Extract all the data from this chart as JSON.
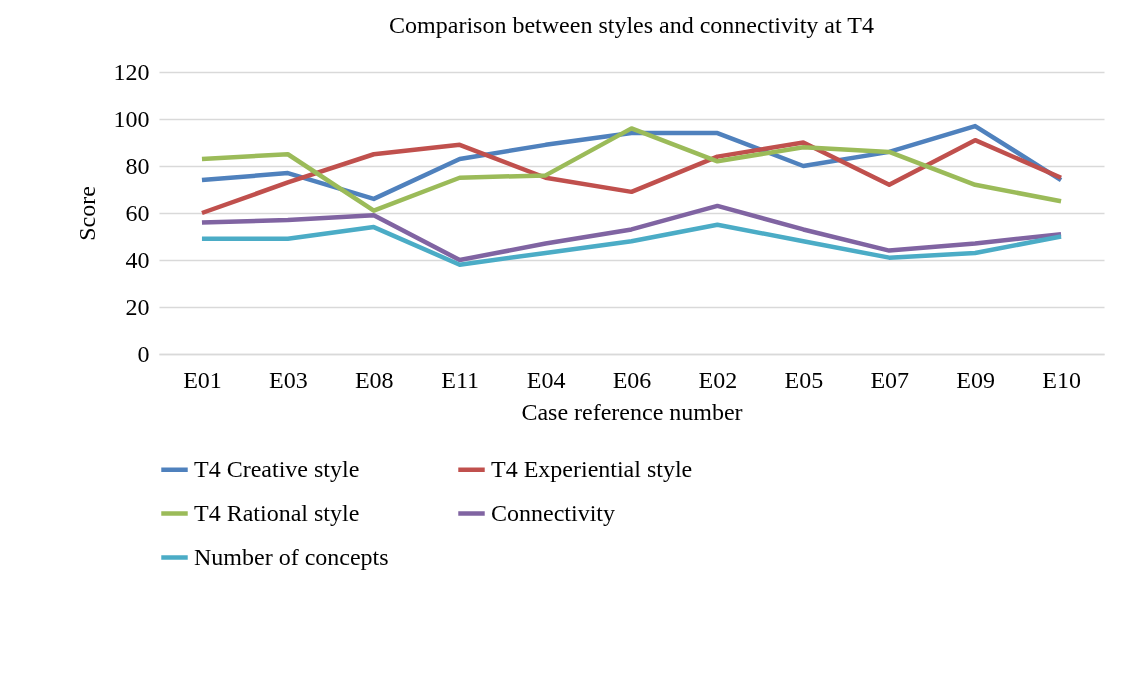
{
  "chart_data": {
    "type": "line",
    "title": "Comparison between styles and connectivity at T4",
    "xlabel": "Case reference number",
    "ylabel": "Score",
    "categories": [
      "E01",
      "E03",
      "E08",
      "E11",
      "E04",
      "E06",
      "E02",
      "E05",
      "E07",
      "E09",
      "E10"
    ],
    "series": [
      {
        "name": "T4 Creative style",
        "color": "#4f81bd",
        "values": [
          74,
          77,
          66,
          83,
          89,
          94,
          94,
          80,
          86,
          97,
          74
        ]
      },
      {
        "name": "T4  Experiential style",
        "color": "#c0504d",
        "values": [
          60,
          73,
          85,
          89,
          75,
          69,
          84,
          90,
          72,
          91,
          75
        ]
      },
      {
        "name": "T4 Rational style",
        "color": "#9bbb59",
        "values": [
          83,
          85,
          61,
          75,
          76,
          96,
          82,
          88,
          86,
          72,
          65
        ]
      },
      {
        "name": "Connectivity",
        "color": "#8064a2",
        "values": [
          56,
          57,
          59,
          40,
          47,
          53,
          63,
          53,
          44,
          47,
          51
        ]
      },
      {
        "name": "Number of concepts",
        "color": "#4bacc6",
        "values": [
          49,
          49,
          54,
          38,
          43,
          48,
          55,
          48,
          41,
          43,
          50
        ]
      }
    ],
    "ylim": [
      0,
      120
    ],
    "yticks": [
      0,
      20,
      40,
      60,
      80,
      100,
      120
    ],
    "grid": "y",
    "legend": "bottom",
    "marker": "none",
    "line_style": "solid"
  }
}
